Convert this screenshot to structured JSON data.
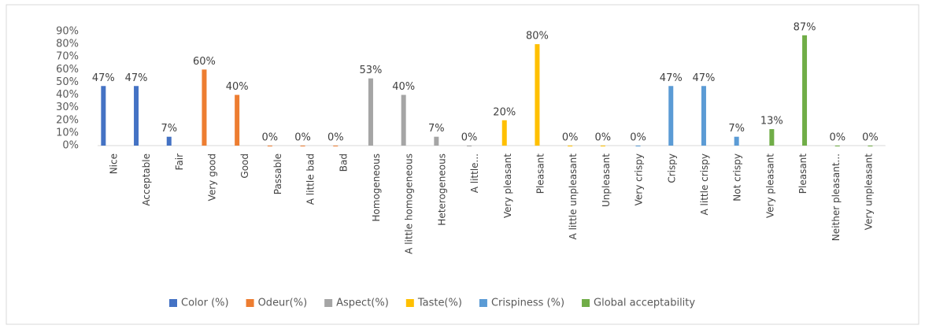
{
  "chart_data": {
    "type": "bar",
    "categories": [
      "Nice",
      "Acceptable",
      "Fair",
      "Very good",
      "Good",
      "Passable",
      "A little bad",
      "Bad",
      "Homogeneous",
      "A little homogeneous",
      "Heterogeneous",
      "A little...",
      "Very pleasant",
      "Pleasant",
      "A little unpleasant",
      "Unpleasant",
      "Very crispy",
      "Crispy",
      "A little crispy",
      "Not crispy",
      "Very pleasant",
      "Pleasant",
      "Neither pleasant...",
      "Very unpleasant"
    ],
    "series": [
      {
        "name": "Color (%)",
        "color": "#4472c4",
        "values": [
          47,
          47,
          7,
          null,
          null,
          null,
          null,
          null,
          null,
          null,
          null,
          null,
          null,
          null,
          null,
          null,
          null,
          null,
          null,
          null,
          null,
          null,
          null,
          null
        ],
        "value_labels": [
          "47%",
          "47%",
          "7%",
          null,
          null,
          null,
          null,
          null,
          null,
          null,
          null,
          null,
          null,
          null,
          null,
          null,
          null,
          null,
          null,
          null,
          null,
          null,
          null,
          null
        ]
      },
      {
        "name": "Odeur(%)",
        "color": "#ed7d31",
        "values": [
          null,
          null,
          null,
          60,
          40,
          0,
          0,
          0,
          null,
          null,
          null,
          null,
          null,
          null,
          null,
          null,
          null,
          null,
          null,
          null,
          null,
          null,
          null,
          null
        ],
        "value_labels": [
          null,
          null,
          null,
          "60%",
          "40%",
          "0%",
          "0%",
          "0%",
          null,
          null,
          null,
          null,
          null,
          null,
          null,
          null,
          null,
          null,
          null,
          null,
          null,
          null,
          null,
          null
        ]
      },
      {
        "name": "Aspect(%)",
        "color": "#a5a5a5",
        "values": [
          null,
          null,
          null,
          null,
          null,
          null,
          null,
          null,
          53,
          40,
          7,
          0,
          null,
          null,
          null,
          null,
          null,
          null,
          null,
          null,
          null,
          null,
          null,
          null
        ],
        "value_labels": [
          null,
          null,
          null,
          null,
          null,
          null,
          null,
          null,
          "53%",
          "40%",
          "7%",
          "0%",
          null,
          null,
          null,
          null,
          null,
          null,
          null,
          null,
          null,
          null,
          null,
          null
        ]
      },
      {
        "name": "Taste(%)",
        "color": "#ffc000",
        "values": [
          null,
          null,
          null,
          null,
          null,
          null,
          null,
          null,
          null,
          null,
          null,
          null,
          20,
          80,
          0,
          0,
          null,
          null,
          null,
          null,
          null,
          null,
          null,
          null
        ],
        "value_labels": [
          null,
          null,
          null,
          null,
          null,
          null,
          null,
          null,
          null,
          null,
          null,
          null,
          "20%",
          "80%",
          "0%",
          "0%",
          null,
          null,
          null,
          null,
          null,
          null,
          null,
          null
        ]
      },
      {
        "name": "Crispiness (%)",
        "color": "#5b9bd5",
        "values": [
          null,
          null,
          null,
          null,
          null,
          null,
          null,
          null,
          null,
          null,
          null,
          null,
          null,
          null,
          null,
          null,
          0,
          47,
          47,
          7,
          null,
          null,
          null,
          null
        ],
        "value_labels": [
          null,
          null,
          null,
          null,
          null,
          null,
          null,
          null,
          null,
          null,
          null,
          null,
          null,
          null,
          null,
          null,
          "0%",
          "47%",
          "47%",
          "7%",
          null,
          null,
          null,
          null
        ]
      },
      {
        "name": "Global acceptability",
        "color": "#70ad47",
        "values": [
          null,
          null,
          null,
          null,
          null,
          null,
          null,
          null,
          null,
          null,
          null,
          null,
          null,
          null,
          null,
          null,
          null,
          null,
          null,
          null,
          13,
          87,
          0,
          0
        ],
        "value_labels": [
          null,
          null,
          null,
          null,
          null,
          null,
          null,
          null,
          null,
          null,
          null,
          null,
          null,
          null,
          null,
          null,
          null,
          null,
          null,
          null,
          "13%",
          "87%",
          "0%",
          "0%"
        ]
      }
    ],
    "ylim": [
      0,
      90
    ],
    "yticks": [
      {
        "value": 0,
        "label": "0%"
      },
      {
        "value": 10,
        "label": "10%"
      },
      {
        "value": 20,
        "label": "20%"
      },
      {
        "value": 30,
        "label": "30%"
      },
      {
        "value": 40,
        "label": "40%"
      },
      {
        "value": 50,
        "label": "50%"
      },
      {
        "value": 60,
        "label": "60%"
      },
      {
        "value": 70,
        "label": "70%"
      },
      {
        "value": 80,
        "label": "80%"
      },
      {
        "value": 90,
        "label": "90%"
      }
    ],
    "grid": false,
    "legend": "bottom"
  }
}
